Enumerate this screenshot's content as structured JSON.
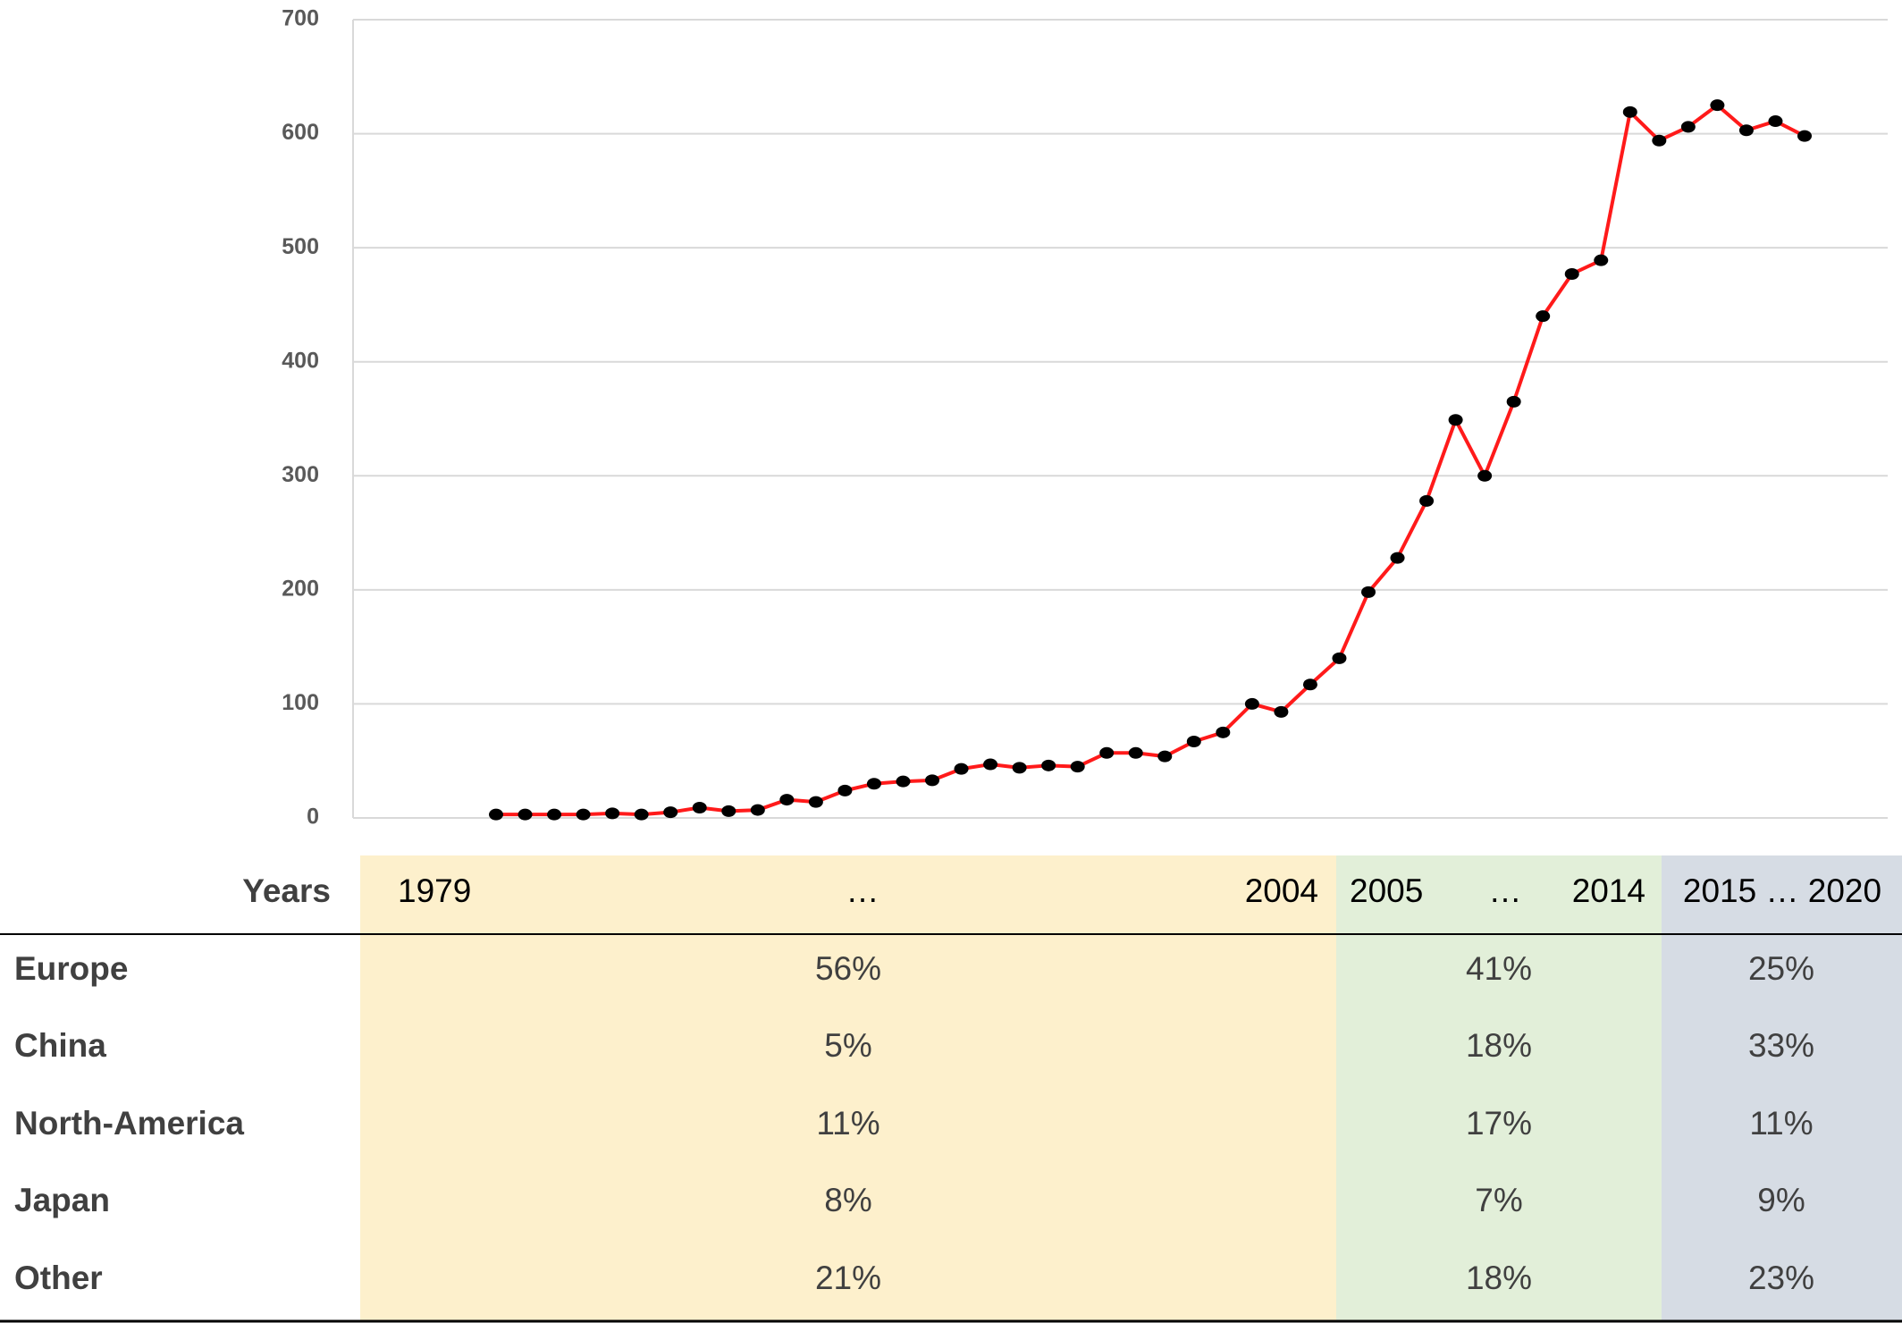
{
  "chart_data": {
    "type": "line",
    "values": [
      3,
      3,
      3,
      3,
      4,
      3,
      5,
      9,
      6,
      7,
      16,
      14,
      24,
      30,
      32,
      33,
      43,
      47,
      44,
      46,
      45,
      57,
      57,
      54,
      67,
      75,
      100,
      93,
      117,
      140,
      198,
      228,
      278,
      349,
      300,
      365,
      440,
      477,
      489,
      619,
      594,
      606,
      625,
      603,
      611,
      598
    ],
    "color": "#ff1a1a",
    "marker_color": "#000000",
    "ylim": [
      0,
      700
    ],
    "yticks": [
      0,
      100,
      200,
      300,
      400,
      500,
      600,
      700
    ],
    "grid": true
  },
  "table": {
    "header": [
      "Years",
      "1979",
      "…",
      "2004",
      "2005",
      "…",
      "2014",
      "2015 … 2020"
    ],
    "rows": [
      [
        "Europe",
        "56%",
        "41%",
        "25%"
      ],
      [
        "China",
        "5%",
        "18%",
        "33%"
      ],
      [
        "North-America",
        "11%",
        "17%",
        "11%"
      ],
      [
        "Japan",
        "8%",
        "7%",
        "9%"
      ],
      [
        "Other",
        "21%",
        "18%",
        "23%"
      ]
    ]
  }
}
